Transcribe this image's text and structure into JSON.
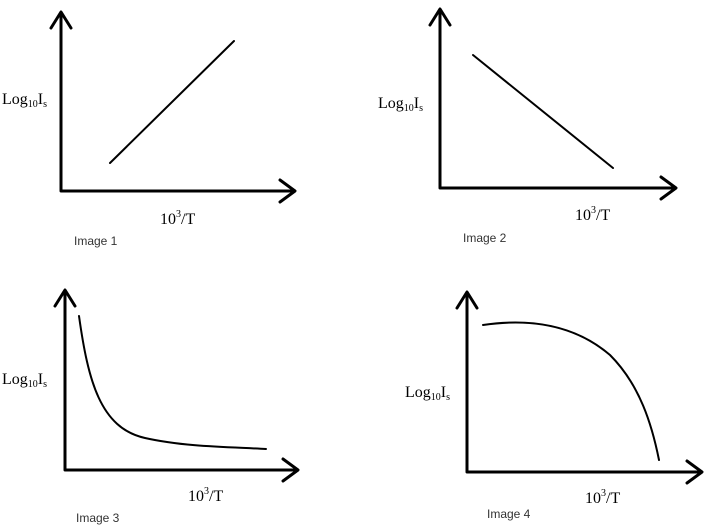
{
  "panels": [
    {
      "caption": "Image 1",
      "y_label": {
        "main": "Log",
        "sub1": "10",
        "mid": "I",
        "sub2": "s"
      },
      "x_label": {
        "main": "10",
        "sup": "3",
        "rest": "/T"
      }
    },
    {
      "caption": "Image 2",
      "y_label": {
        "main": "Log",
        "sub1": "10",
        "mid": "I",
        "sub2": "s"
      },
      "x_label": {
        "main": "10",
        "sup": "3",
        "rest": "/T"
      }
    },
    {
      "caption": "Image 3",
      "y_label": {
        "main": "Log",
        "sub1": "10",
        "mid": "I",
        "sub2": "s"
      },
      "x_label": {
        "main": "10",
        "sup": "3",
        "rest": "/T"
      }
    },
    {
      "caption": "Image 4",
      "y_label": {
        "main": "Log",
        "sub1": "10",
        "mid": "I",
        "sub2": "s"
      },
      "x_label": {
        "main": "10",
        "sup": "3",
        "rest": "/T"
      }
    }
  ]
}
